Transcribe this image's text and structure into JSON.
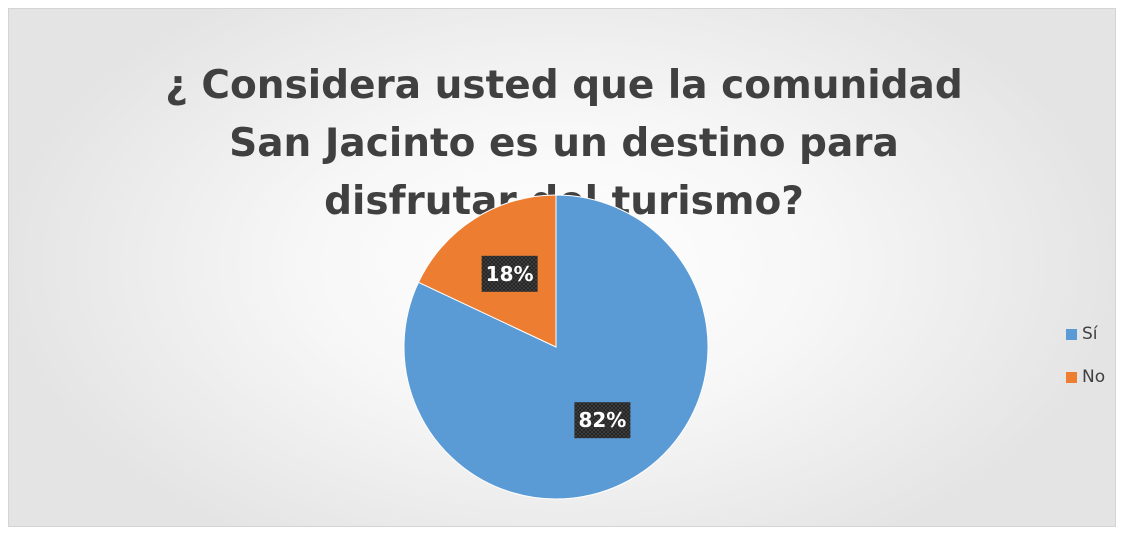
{
  "chart_data": {
    "type": "pie",
    "title": "¿ Considera usted que la comunidad San Jacinto es un destino para disfrutar del turismo?",
    "categories": [
      "Sí",
      "No"
    ],
    "values": [
      82,
      18
    ],
    "data_labels": [
      "82%",
      "18%"
    ],
    "colors": [
      "#5b9bd5",
      "#ed7d31"
    ],
    "legend_position": "right",
    "start_angle_deg": 0,
    "direction": "clockwise"
  }
}
